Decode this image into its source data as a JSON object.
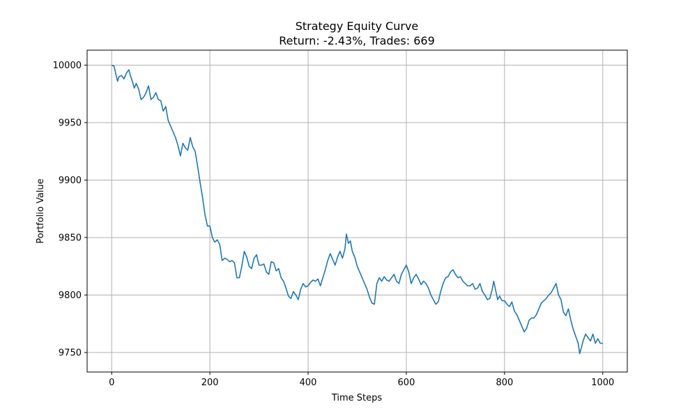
{
  "chart_data": {
    "type": "line",
    "title": "Strategy Equity Curve",
    "subtitle": "Return: -2.43%, Trades: 669",
    "xlabel": "Time Steps",
    "ylabel": "Portfolio Value",
    "xlim": [
      -50,
      1050
    ],
    "ylim": [
      9733,
      10013
    ],
    "xticks": [
      0,
      200,
      400,
      600,
      800,
      1000
    ],
    "yticks": [
      9750,
      9800,
      9850,
      9900,
      9950,
      10000
    ],
    "grid": true,
    "line_color": "#1f77b4",
    "series": [
      {
        "points": [
          [
            0,
            10000
          ],
          [
            5,
            9999
          ],
          [
            8,
            9993
          ],
          [
            12,
            9986
          ],
          [
            15,
            9990
          ],
          [
            20,
            9991
          ],
          [
            25,
            9988
          ],
          [
            30,
            9993
          ],
          [
            35,
            9996
          ],
          [
            38,
            9991
          ],
          [
            42,
            9986
          ],
          [
            46,
            9980
          ],
          [
            50,
            9984
          ],
          [
            55,
            9979
          ],
          [
            60,
            9970
          ],
          [
            65,
            9972
          ],
          [
            70,
            9976
          ],
          [
            75,
            9982
          ],
          [
            80,
            9970
          ],
          [
            85,
            9972
          ],
          [
            90,
            9976
          ],
          [
            95,
            9970
          ],
          [
            100,
            9969
          ],
          [
            105,
            9960
          ],
          [
            110,
            9964
          ],
          [
            115,
            9952
          ],
          [
            120,
            9947
          ],
          [
            125,
            9942
          ],
          [
            130,
            9937
          ],
          [
            135,
            9930
          ],
          [
            140,
            9921
          ],
          [
            145,
            9932
          ],
          [
            150,
            9928
          ],
          [
            155,
            9926
          ],
          [
            160,
            9937
          ],
          [
            165,
            9929
          ],
          [
            170,
            9925
          ],
          [
            175,
            9912
          ],
          [
            180,
            9898
          ],
          [
            185,
            9885
          ],
          [
            190,
            9870
          ],
          [
            195,
            9860
          ],
          [
            200,
            9860
          ],
          [
            205,
            9850
          ],
          [
            210,
            9846
          ],
          [
            215,
            9848
          ],
          [
            220,
            9844
          ],
          [
            225,
            9830
          ],
          [
            230,
            9832
          ],
          [
            235,
            9831
          ],
          [
            240,
            9829
          ],
          [
            245,
            9830
          ],
          [
            250,
            9828
          ],
          [
            255,
            9815
          ],
          [
            260,
            9815
          ],
          [
            265,
            9825
          ],
          [
            270,
            9838
          ],
          [
            275,
            9833
          ],
          [
            280,
            9825
          ],
          [
            285,
            9823
          ],
          [
            290,
            9832
          ],
          [
            295,
            9835
          ],
          [
            300,
            9826
          ],
          [
            305,
            9826
          ],
          [
            310,
            9827
          ],
          [
            315,
            9820
          ],
          [
            320,
            9818
          ],
          [
            325,
            9829
          ],
          [
            330,
            9828
          ],
          [
            335,
            9821
          ],
          [
            340,
            9823
          ],
          [
            345,
            9815
          ],
          [
            350,
            9812
          ],
          [
            355,
            9806
          ],
          [
            360,
            9799
          ],
          [
            365,
            9797
          ],
          [
            370,
            9803
          ],
          [
            375,
            9800
          ],
          [
            380,
            9796
          ],
          [
            385,
            9805
          ],
          [
            390,
            9810
          ],
          [
            395,
            9807
          ],
          [
            400,
            9808
          ],
          [
            405,
            9811
          ],
          [
            410,
            9813
          ],
          [
            415,
            9812
          ],
          [
            420,
            9814
          ],
          [
            425,
            9808
          ],
          [
            430,
            9815
          ],
          [
            435,
            9822
          ],
          [
            440,
            9830
          ],
          [
            445,
            9836
          ],
          [
            450,
            9831
          ],
          [
            455,
            9826
          ],
          [
            460,
            9833
          ],
          [
            465,
            9838
          ],
          [
            470,
            9832
          ],
          [
            475,
            9840
          ],
          [
            478,
            9853
          ],
          [
            482,
            9845
          ],
          [
            486,
            9847
          ],
          [
            490,
            9838
          ],
          [
            495,
            9833
          ],
          [
            500,
            9825
          ],
          [
            505,
            9820
          ],
          [
            510,
            9815
          ],
          [
            515,
            9810
          ],
          [
            520,
            9805
          ],
          [
            525,
            9798
          ],
          [
            530,
            9793
          ],
          [
            535,
            9792
          ],
          [
            540,
            9810
          ],
          [
            545,
            9815
          ],
          [
            550,
            9812
          ],
          [
            555,
            9816
          ],
          [
            560,
            9813
          ],
          [
            565,
            9812
          ],
          [
            570,
            9815
          ],
          [
            575,
            9818
          ],
          [
            580,
            9812
          ],
          [
            585,
            9810
          ],
          [
            590,
            9818
          ],
          [
            595,
            9822
          ],
          [
            600,
            9826
          ],
          [
            605,
            9820
          ],
          [
            610,
            9810
          ],
          [
            615,
            9815
          ],
          [
            620,
            9818
          ],
          [
            625,
            9814
          ],
          [
            630,
            9809
          ],
          [
            635,
            9812
          ],
          [
            640,
            9810
          ],
          [
            645,
            9806
          ],
          [
            650,
            9800
          ],
          [
            655,
            9796
          ],
          [
            660,
            9792
          ],
          [
            665,
            9794
          ],
          [
            670,
            9803
          ],
          [
            675,
            9810
          ],
          [
            680,
            9815
          ],
          [
            685,
            9816
          ],
          [
            690,
            9820
          ],
          [
            695,
            9822
          ],
          [
            700,
            9818
          ],
          [
            705,
            9815
          ],
          [
            710,
            9816
          ],
          [
            715,
            9812
          ],
          [
            720,
            9810
          ],
          [
            725,
            9808
          ],
          [
            730,
            9808
          ],
          [
            735,
            9810
          ],
          [
            740,
            9805
          ],
          [
            745,
            9806
          ],
          [
            750,
            9810
          ],
          [
            755,
            9803
          ],
          [
            760,
            9800
          ],
          [
            765,
            9796
          ],
          [
            770,
            9797
          ],
          [
            775,
            9805
          ],
          [
            778,
            9812
          ],
          [
            782,
            9804
          ],
          [
            786,
            9796
          ],
          [
            790,
            9799
          ],
          [
            795,
            9795
          ],
          [
            800,
            9795
          ],
          [
            805,
            9792
          ],
          [
            810,
            9790
          ],
          [
            815,
            9794
          ],
          [
            820,
            9786
          ],
          [
            825,
            9783
          ],
          [
            830,
            9778
          ],
          [
            835,
            9773
          ],
          [
            840,
            9768
          ],
          [
            845,
            9771
          ],
          [
            850,
            9778
          ],
          [
            855,
            9780
          ],
          [
            860,
            9780
          ],
          [
            865,
            9783
          ],
          [
            870,
            9788
          ],
          [
            875,
            9793
          ],
          [
            880,
            9795
          ],
          [
            885,
            9797
          ],
          [
            890,
            9800
          ],
          [
            895,
            9802
          ],
          [
            900,
            9806
          ],
          [
            905,
            9810
          ],
          [
            910,
            9800
          ],
          [
            915,
            9796
          ],
          [
            920,
            9785
          ],
          [
            925,
            9782
          ],
          [
            930,
            9788
          ],
          [
            935,
            9778
          ],
          [
            940,
            9770
          ],
          [
            945,
            9764
          ],
          [
            950,
            9758
          ],
          [
            953,
            9749
          ],
          [
            957,
            9755
          ],
          [
            960,
            9760
          ],
          [
            965,
            9766
          ],
          [
            970,
            9763
          ],
          [
            975,
            9760
          ],
          [
            980,
            9766
          ],
          [
            985,
            9758
          ],
          [
            990,
            9762
          ],
          [
            995,
            9758
          ],
          [
            1000,
            9758
          ]
        ]
      }
    ]
  }
}
